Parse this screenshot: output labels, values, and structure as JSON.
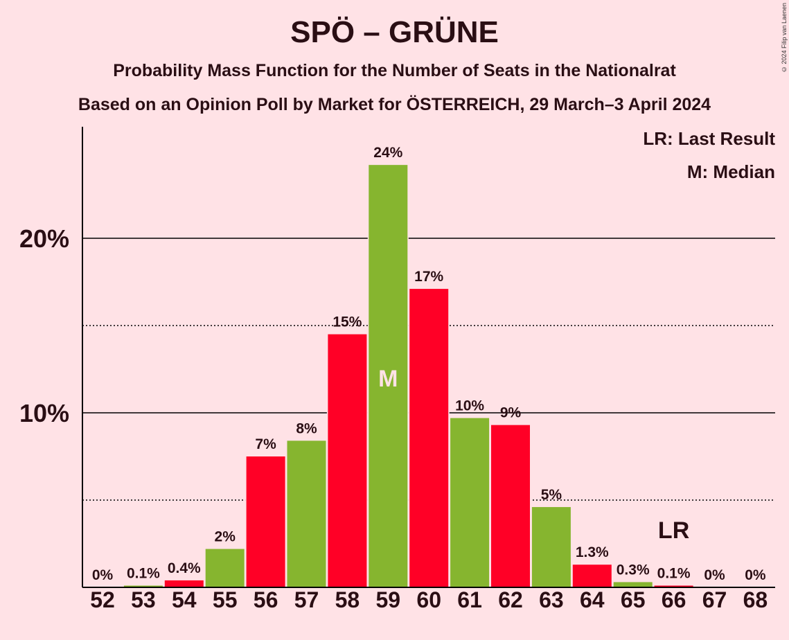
{
  "title": "SPÖ – GRÜNE",
  "subtitle": "Probability Mass Function for the Number of Seats in the Nationalrat",
  "subtitle2": "Based on an Opinion Poll by Market for ÖSTERREICH, 29 March–3 April 2024",
  "copyright": "© 2024 Filip van Laenen",
  "legend": {
    "last_result": "LR: Last Result",
    "median": "M: Median"
  },
  "markers": {
    "median_label": "M",
    "median_seat": 59,
    "last_result_label": "LR",
    "last_result_seat": 66
  },
  "colors": {
    "background": "#FFE2E6",
    "red": "#FF0026",
    "green": "#86B52F",
    "text": "#2A0E14"
  },
  "chart_data": {
    "type": "bar",
    "categories": [
      "52",
      "53",
      "54",
      "55",
      "56",
      "57",
      "58",
      "59",
      "60",
      "61",
      "62",
      "63",
      "64",
      "65",
      "66",
      "67",
      "68"
    ],
    "values": [
      0,
      0.1,
      0.4,
      2.2,
      7.5,
      8.4,
      14.5,
      24.2,
      17.1,
      9.7,
      9.3,
      4.6,
      1.3,
      0.3,
      0.1,
      0,
      0
    ],
    "labels": [
      "0%",
      "0.1%",
      "0.4%",
      "2%",
      "7%",
      "8%",
      "15%",
      "24%",
      "17%",
      "10%",
      "9%",
      "5%",
      "1.3%",
      "0.3%",
      "0.1%",
      "0%",
      "0%"
    ],
    "bar_colors": [
      "red",
      "green",
      "red",
      "green",
      "red",
      "green",
      "red",
      "green",
      "red",
      "green",
      "red",
      "green",
      "red",
      "green",
      "red",
      "green",
      "red"
    ],
    "y_ticks": [
      {
        "value": 10,
        "label": "10%"
      },
      {
        "value": 20,
        "label": "20%"
      }
    ],
    "minor_gridlines": [
      5,
      15
    ],
    "ylim": [
      0,
      26.4
    ],
    "xlabel": "",
    "ylabel": ""
  }
}
